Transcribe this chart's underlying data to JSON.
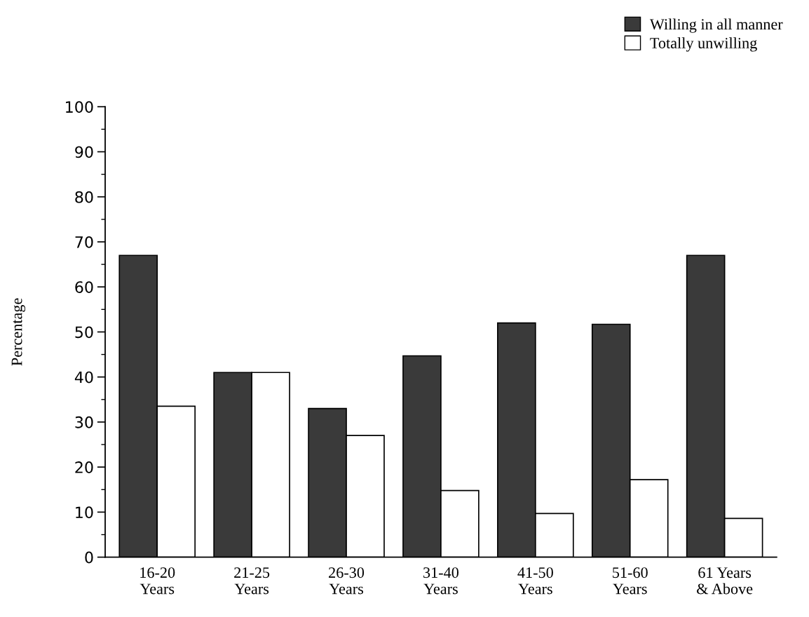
{
  "chart_data": {
    "type": "bar",
    "ylabel": "Percentage",
    "categories": [
      "16-20\nYears",
      "21-25\nYears",
      "26-30\nYears",
      "31-40\nYears",
      "41-50\nYears",
      "51-60\nYears",
      "61 Years\n& Above"
    ],
    "series": [
      {
        "name": "Willing in all manner",
        "color": "#3a3a3a",
        "values": [
          67,
          41,
          33,
          44.7,
          52,
          51.7,
          67
        ]
      },
      {
        "name": "Totally unwilling",
        "color": "#ffffff",
        "values": [
          33.5,
          41,
          27,
          14.8,
          9.7,
          17.2,
          8.6
        ]
      }
    ],
    "ylim": [
      0,
      100
    ],
    "yticks": [
      0,
      {
        "value": 5,
        "label": null
      },
      10,
      {
        "value": 15,
        "label": null
      },
      20,
      {
        "value": 25,
        "label": null
      },
      30,
      {
        "value": 35,
        "label": null
      },
      40,
      {
        "value": 45,
        "label": null
      },
      50,
      {
        "value": 55,
        "label": null
      },
      60,
      {
        "value": 65,
        "label": null
      },
      70,
      {
        "value": 75,
        "label": null
      },
      80,
      {
        "value": 85,
        "label": null
      },
      90,
      {
        "value": 95,
        "label": null
      },
      100
    ],
    "grid": false,
    "legend": "top right"
  }
}
